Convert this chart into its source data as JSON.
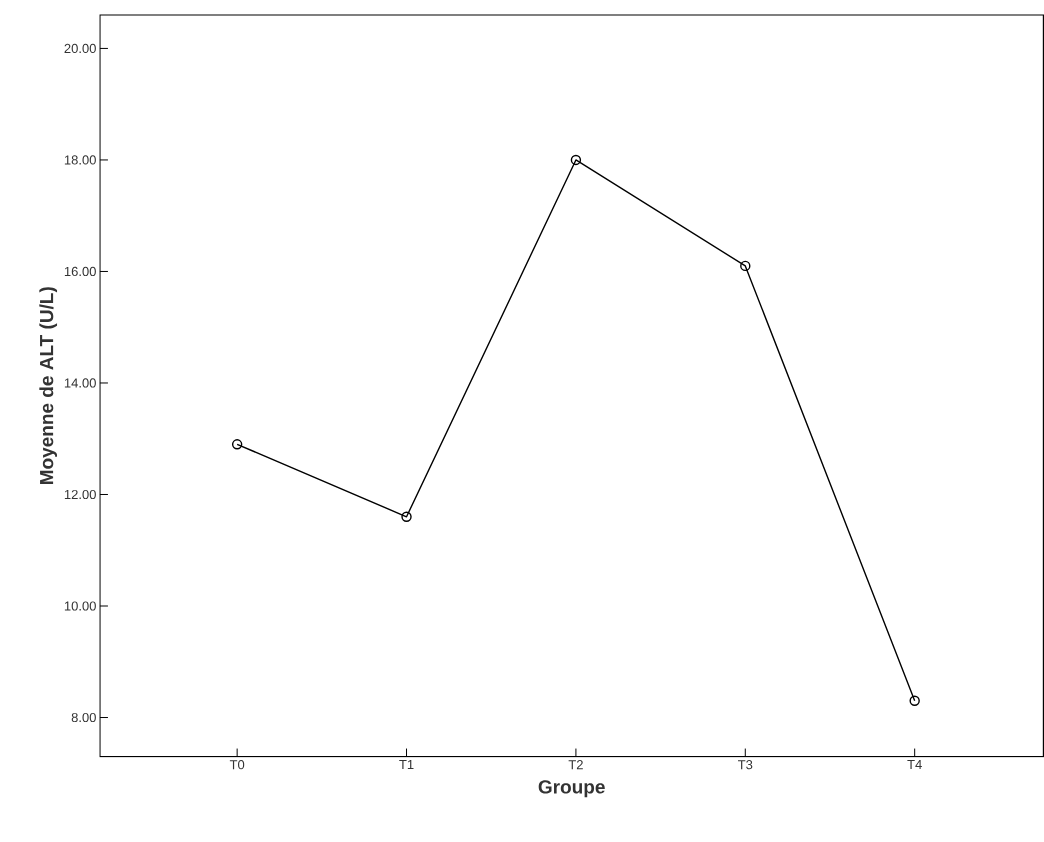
{
  "chart_data": {
    "type": "line",
    "xlabel": "Groupe",
    "ylabel": "Moyenne de ALT (U/L)",
    "categories": [
      "T0",
      "T1",
      "T2",
      "T3",
      "T4"
    ],
    "series": [
      {
        "color": "#000000",
        "values": [
          12.9,
          11.6,
          18.0,
          16.1,
          8.3
        ]
      }
    ],
    "ylim": [
      7.3,
      20.6
    ],
    "yticks": [
      {
        "value": 8,
        "label": "8.00"
      },
      {
        "value": 10,
        "label": "10.00"
      },
      {
        "value": 12,
        "label": "12.00"
      },
      {
        "value": 14,
        "label": "14.00"
      },
      {
        "value": 16,
        "label": "16.00"
      },
      {
        "value": 18,
        "label": "18.00"
      },
      {
        "value": 20,
        "label": "20.00"
      }
    ],
    "marker": "circle",
    "line_style": "solid",
    "grid": false
  }
}
